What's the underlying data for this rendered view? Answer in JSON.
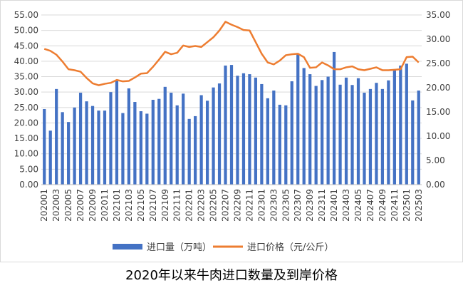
{
  "caption": "2020年以来牛肉进口数量及到岸价格",
  "colors": {
    "bar": "#4472C4",
    "line": "#ED7D31",
    "grid": "#d9d9d9",
    "text": "#404040"
  },
  "chart_data": {
    "type": "bar",
    "title": "",
    "legend_position": "bottom",
    "grid": true,
    "x": [
      "202001",
      "202002",
      "202003",
      "202004",
      "202005",
      "202006",
      "202007",
      "202008",
      "202009",
      "202010",
      "202011",
      "202012",
      "202101",
      "202102",
      "202103",
      "202104",
      "202105",
      "202106",
      "202107",
      "202108",
      "202109",
      "202110",
      "202111",
      "202112",
      "202201",
      "202202",
      "202203",
      "202204",
      "202205",
      "202206",
      "202207",
      "202208",
      "202209",
      "202210",
      "202211",
      "202212",
      "202301",
      "202302",
      "202303",
      "202304",
      "202305",
      "202306",
      "202307",
      "202308",
      "202309",
      "202310",
      "202311",
      "202312",
      "202401",
      "202402",
      "202403",
      "202404",
      "202405",
      "202406",
      "202407",
      "202408",
      "202409",
      "202410",
      "202411",
      "202412",
      "202501",
      "202502",
      "202503"
    ],
    "x_tick_labels": [
      "202001",
      "202003",
      "202005",
      "202007",
      "202009",
      "202011",
      "202101",
      "202103",
      "202105",
      "202107",
      "202109",
      "202111",
      "202201",
      "202203",
      "202205",
      "202207",
      "202209",
      "202211",
      "202301",
      "202303",
      "202305",
      "202307",
      "202309",
      "202311",
      "202401",
      "202403",
      "202405",
      "202407",
      "202409",
      "202411",
      "202501",
      "202503"
    ],
    "y_left": {
      "ylim": [
        0,
        55
      ],
      "ticks": [
        "0.00",
        "5.00",
        "10.00",
        "15.00",
        "20.00",
        "25.00",
        "30.00",
        "35.00",
        "40.00",
        "45.00",
        "50.00",
        "55.00"
      ]
    },
    "y_right": {
      "ylim": [
        0,
        35
      ],
      "ticks": [
        "0.00",
        "5.00",
        "10.00",
        "15.00",
        "20.00",
        "25.00",
        "30.00",
        "35.00"
      ]
    },
    "series": [
      {
        "name": "进口量（万吨）",
        "type": "bar",
        "axis": "left",
        "values": [
          24.5,
          17.5,
          31.0,
          23.5,
          20.3,
          25.0,
          29.8,
          27.0,
          25.5,
          24.0,
          24.0,
          30.0,
          33.8,
          23.2,
          31.2,
          26.8,
          23.8,
          23.0,
          27.5,
          27.8,
          31.7,
          29.8,
          25.7,
          29.5,
          21.3,
          22.2,
          29.0,
          27.2,
          31.5,
          32.8,
          38.6,
          38.8,
          35.3,
          36.1,
          35.8,
          34.7,
          32.6,
          28.0,
          30.5,
          25.9,
          25.7,
          33.5,
          42.2,
          37.8,
          35.8,
          32.0,
          33.9,
          35.0,
          43.0,
          32.4,
          34.7,
          32.3,
          34.5,
          29.8,
          31.0,
          33.0,
          31.0,
          33.8,
          37.0,
          38.6,
          39.2,
          27.3,
          30.5
        ]
      },
      {
        "name": "进口价格（元/公斤）",
        "type": "line",
        "axis": "right",
        "values": [
          28.0,
          27.6,
          26.8,
          25.4,
          23.8,
          23.6,
          23.3,
          22.0,
          20.9,
          20.5,
          20.8,
          21.0,
          21.6,
          21.3,
          21.4,
          22.1,
          22.9,
          23.0,
          24.3,
          25.8,
          27.4,
          26.9,
          27.2,
          28.7,
          28.4,
          28.6,
          28.4,
          29.4,
          30.4,
          31.8,
          33.6,
          33.0,
          32.5,
          31.9,
          31.8,
          29.4,
          27.0,
          25.2,
          24.8,
          25.6,
          26.7,
          26.9,
          27.0,
          26.3,
          24.1,
          24.2,
          25.2,
          24.6,
          23.8,
          23.8,
          24.2,
          24.4,
          23.8,
          23.6,
          23.9,
          24.2,
          23.6,
          23.6,
          23.7,
          23.8,
          26.3,
          26.4,
          25.2
        ]
      }
    ]
  }
}
